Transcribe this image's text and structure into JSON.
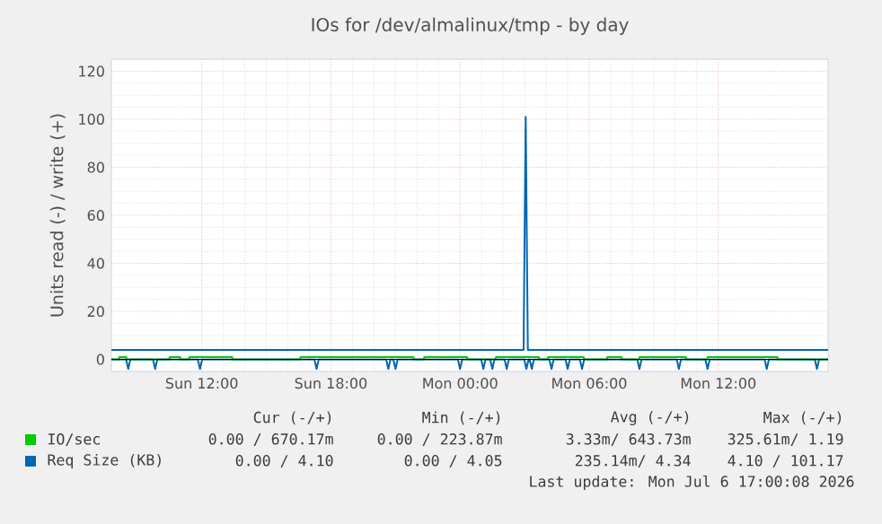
{
  "chart_data": {
    "type": "line",
    "title": "IOs for /dev/almalinux/tmp - by day",
    "ylabel": "Units read (-) / write (+)",
    "xlim": [
      "2026-07-05T07:48",
      "2026-07-06T17:06"
    ],
    "ylim": [
      -5,
      125
    ],
    "xticks": [
      {
        "value": "2026-07-05T12:00",
        "label": "Sun 12:00"
      },
      {
        "value": "2026-07-05T18:00",
        "label": "Sun 18:00"
      },
      {
        "value": "2026-07-06T00:00",
        "label": "Mon 00:00"
      },
      {
        "value": "2026-07-06T06:00",
        "label": "Mon 06:00"
      },
      {
        "value": "2026-07-06T12:00",
        "label": "Mon 12:00"
      }
    ],
    "yticks": [
      0,
      20,
      40,
      60,
      80,
      100,
      120
    ],
    "grid": true,
    "legend": "bottom",
    "ref_lines": [
      {
        "axis": "y",
        "value": 0,
        "color": "#000000"
      }
    ],
    "series": [
      {
        "name": "IO/sec",
        "color": "#00cc00",
        "x": [
          "2026-07-05T07:48",
          "2026-07-05T08:10",
          "2026-07-05T08:10",
          "2026-07-05T08:30",
          "2026-07-05T08:30",
          "2026-07-05T10:30",
          "2026-07-05T10:30",
          "2026-07-05T11:00",
          "2026-07-05T11:00",
          "2026-07-05T11:25",
          "2026-07-05T11:25",
          "2026-07-05T13:25",
          "2026-07-05T13:25",
          "2026-07-05T16:35",
          "2026-07-05T16:35",
          "2026-07-05T21:50",
          "2026-07-05T21:50",
          "2026-07-05T22:20",
          "2026-07-05T22:20",
          "2026-07-06T00:20",
          "2026-07-06T00:20",
          "2026-07-06T01:40",
          "2026-07-06T01:40",
          "2026-07-06T03:40",
          "2026-07-06T03:40",
          "2026-07-06T04:05",
          "2026-07-06T04:05",
          "2026-07-06T05:45",
          "2026-07-06T05:45",
          "2026-07-06T06:50",
          "2026-07-06T06:50",
          "2026-07-06T07:30",
          "2026-07-06T07:30",
          "2026-07-06T08:20",
          "2026-07-06T08:20",
          "2026-07-06T10:30",
          "2026-07-06T10:30",
          "2026-07-06T11:30",
          "2026-07-06T11:30",
          "2026-07-06T14:45",
          "2026-07-06T14:45",
          "2026-07-06T17:06"
        ],
        "values": [
          0,
          0,
          1,
          1,
          0,
          0,
          1,
          1,
          0,
          0,
          1,
          1,
          0,
          0,
          1,
          1,
          0,
          0,
          1,
          1,
          0,
          0,
          1,
          1,
          0,
          0,
          1,
          1,
          0,
          0,
          1,
          1,
          0,
          0,
          1,
          1,
          0,
          0,
          1,
          1,
          0,
          0
        ]
      },
      {
        "name": "Req Size (KB)",
        "color": "#0066b3",
        "x": [
          "2026-07-05T07:48",
          "2026-07-06T02:57",
          "2026-07-06T03:03",
          "2026-07-06T03:09",
          "2026-07-06T17:06"
        ],
        "values": [
          4,
          4,
          101,
          4,
          4
        ]
      },
      {
        "color": "#0066b3",
        "x": [
          "2026-07-05T07:48",
          "2026-07-05T08:29",
          "2026-07-05T08:35",
          "2026-07-05T08:41",
          "2026-07-05T09:44",
          "2026-07-05T09:50",
          "2026-07-05T09:56",
          "2026-07-05T11:49",
          "2026-07-05T11:55",
          "2026-07-05T12:01",
          "2026-07-05T17:14",
          "2026-07-05T17:20",
          "2026-07-05T17:26",
          "2026-07-05T20:34",
          "2026-07-05T20:40",
          "2026-07-05T20:46",
          "2026-07-05T20:54",
          "2026-07-05T21:00",
          "2026-07-05T21:06",
          "2026-07-05T23:54",
          "2026-07-06T00:00",
          "2026-07-06T00:06",
          "2026-07-06T00:59",
          "2026-07-06T01:05",
          "2026-07-06T01:11",
          "2026-07-06T01:24",
          "2026-07-06T01:30",
          "2026-07-06T01:36",
          "2026-07-06T02:04",
          "2026-07-06T02:10",
          "2026-07-06T02:16",
          "2026-07-06T02:59",
          "2026-07-06T03:05",
          "2026-07-06T03:11",
          "2026-07-06T03:14",
          "2026-07-06T03:20",
          "2026-07-06T03:26",
          "2026-07-06T04:09",
          "2026-07-06T04:15",
          "2026-07-06T04:21",
          "2026-07-06T04:54",
          "2026-07-06T05:00",
          "2026-07-06T05:06",
          "2026-07-06T05:34",
          "2026-07-06T05:40",
          "2026-07-06T05:46",
          "2026-07-06T08:14",
          "2026-07-06T08:20",
          "2026-07-06T08:26",
          "2026-07-06T10:04",
          "2026-07-06T10:10",
          "2026-07-06T10:16",
          "2026-07-06T11:24",
          "2026-07-06T11:30",
          "2026-07-06T11:36",
          "2026-07-06T14:09",
          "2026-07-06T14:15",
          "2026-07-06T14:21",
          "2026-07-06T16:29",
          "2026-07-06T16:35",
          "2026-07-06T16:41",
          "2026-07-06T17:06"
        ],
        "values": [
          0,
          0,
          -4,
          0,
          0,
          -4,
          0,
          0,
          -4,
          0,
          0,
          -4,
          0,
          0,
          -4,
          0,
          0,
          -4,
          0,
          0,
          -4,
          0,
          0,
          -4,
          0,
          0,
          -4,
          0,
          0,
          -4,
          0,
          0,
          -4,
          0,
          0,
          -4,
          0,
          0,
          -4,
          0,
          0,
          -4,
          0,
          0,
          -4,
          0,
          0,
          -4,
          0,
          0,
          -4,
          0,
          0,
          -4,
          0,
          0,
          -4,
          0,
          0,
          -4,
          0,
          0
        ]
      }
    ],
    "annotations": [
      "Cur (-/+)",
      "Min (-/+)",
      "Avg (-/+)",
      "Max (-/+)",
      "0.00 / 670.17m",
      "0.00 / 223.87m",
      "3.33m/ 643.73m",
      "325.61m/ 1.19",
      "0.00 / 4.10",
      "0.00 / 4.05",
      "235.14m/ 4.34",
      "4.10 / 101.17",
      "Last update: Mon Jul  6 17:00:08 2026"
    ]
  }
}
